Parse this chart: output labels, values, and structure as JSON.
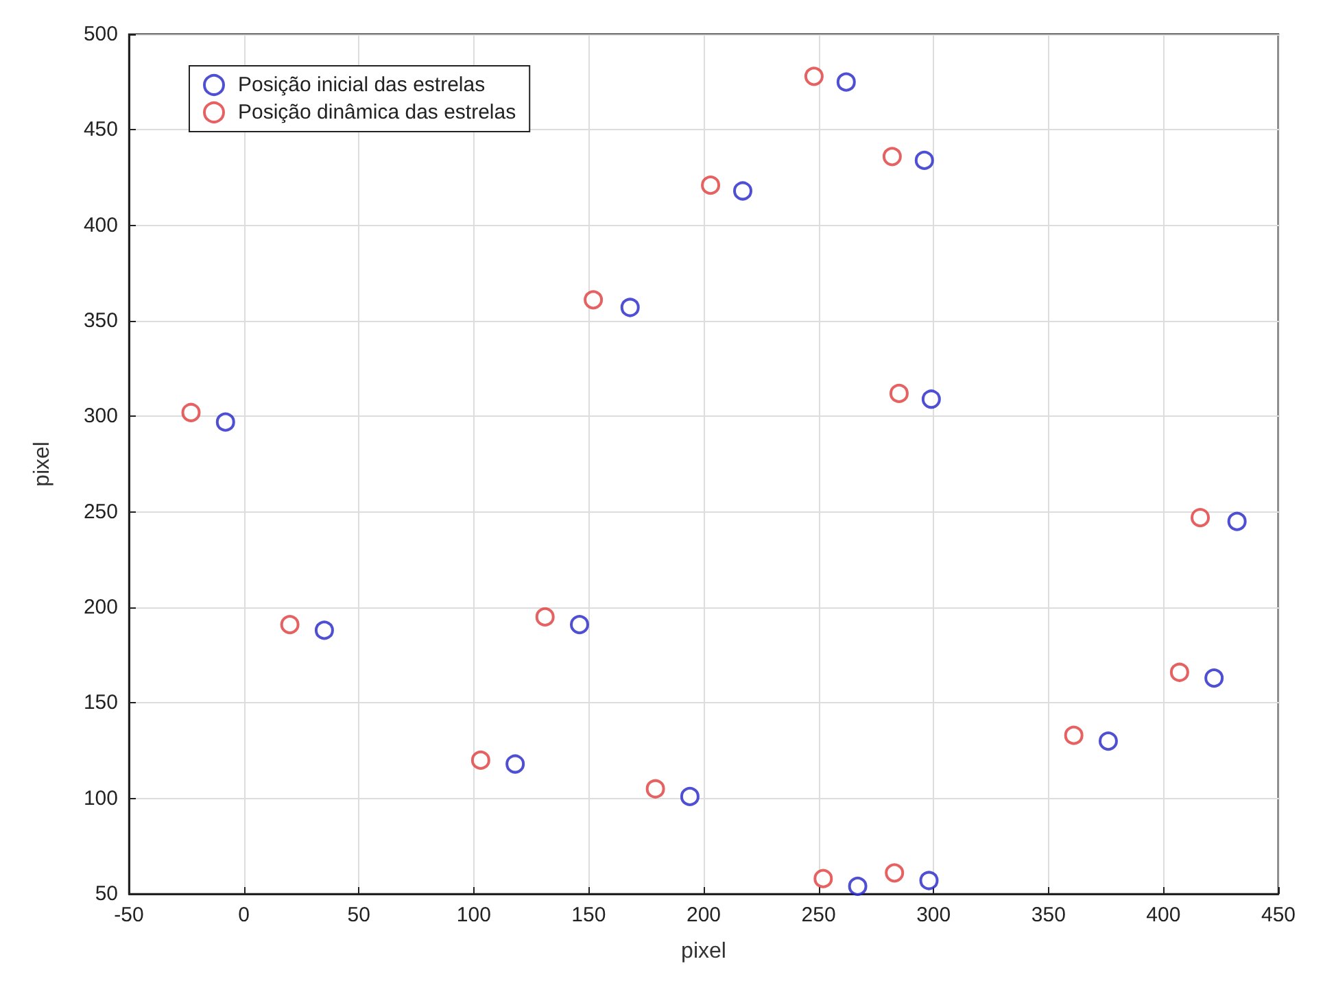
{
  "chart_data": {
    "type": "scatter",
    "xlabel": "pixel",
    "ylabel": "pixel",
    "xlim": [
      -50,
      450
    ],
    "ylim": [
      50,
      500
    ],
    "xticks": [
      -50,
      0,
      50,
      100,
      150,
      200,
      250,
      300,
      350,
      400,
      450
    ],
    "yticks": [
      50,
      100,
      150,
      200,
      250,
      300,
      350,
      400,
      450,
      500
    ],
    "grid": true,
    "legend": "top left",
    "marker": "circle",
    "series": [
      {
        "name": "Posição inicial das estrelas",
        "color": "#2323c8",
        "x": [
          -8,
          35,
          146,
          118,
          194,
          168,
          217,
          262,
          296,
          299,
          432,
          422,
          376,
          267,
          298
        ],
        "values": [
          297,
          188,
          191,
          118,
          101,
          357,
          418,
          475,
          434,
          309,
          245,
          163,
          130,
          54,
          57
        ]
      },
      {
        "name": "Posição dinâmica das estrelas",
        "color": "#e03a3a",
        "x": [
          -23,
          20,
          131,
          103,
          179,
          152,
          203,
          248,
          282,
          285,
          416,
          407,
          361,
          252,
          283
        ],
        "values": [
          302,
          191,
          195,
          120,
          105,
          361,
          421,
          478,
          436,
          312,
          247,
          166,
          133,
          58,
          61
        ]
      }
    ]
  }
}
